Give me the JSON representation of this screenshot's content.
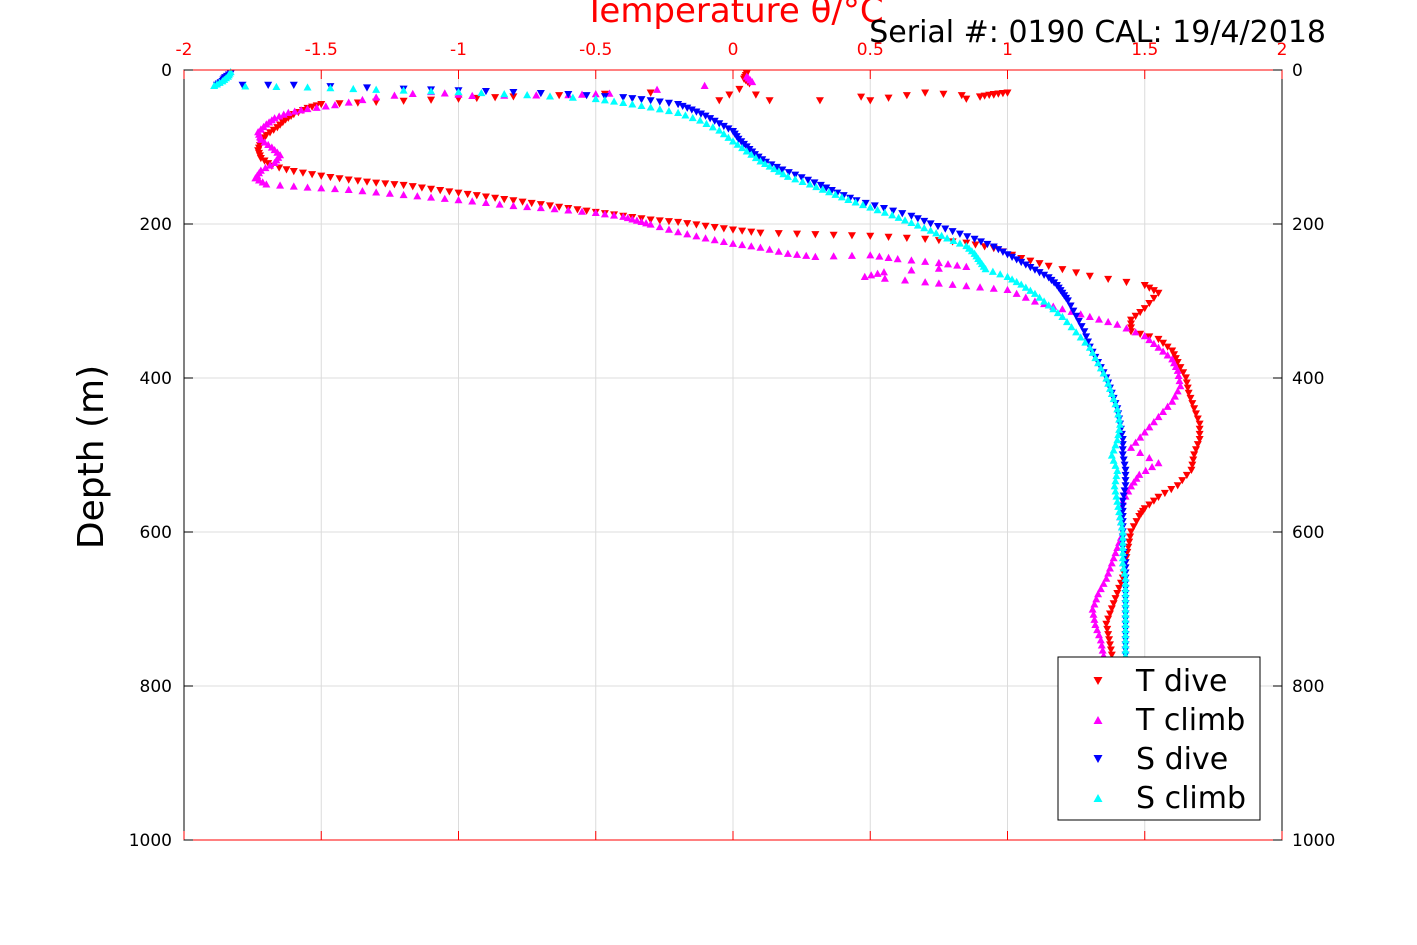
{
  "chart_data": {
    "type": "scatter",
    "title": "Temperature θ/°C",
    "subtitle": "Serial #: 0190  CAL: 19/4/2018",
    "xlabel": "Temperature θ/°C",
    "ylabel": "Depth (m)",
    "xlim": [
      -2,
      2
    ],
    "ylim": [
      0,
      1000
    ],
    "y_reversed": true,
    "x_axis_position": "top",
    "x_ticks": [
      -2,
      -1.5,
      -1,
      -0.5,
      0,
      0.5,
      1,
      1.5,
      2
    ],
    "x_tick_labels": [
      "-2",
      "-1.5",
      "-1",
      "-0.5",
      "0",
      "0.5",
      "1",
      "1.5",
      "2"
    ],
    "y_ticks": [
      0,
      200,
      400,
      600,
      800,
      1000
    ],
    "y_tick_labels": [
      "0",
      "200",
      "400",
      "600",
      "800",
      "1000"
    ],
    "grid": true,
    "legend_position": "bottom-right",
    "series": [
      {
        "name": "T dive",
        "color": "#ff0000",
        "marker": "triangle-down",
        "points": [
          [
            0.05,
            5
          ],
          [
            0.04,
            12
          ],
          [
            0.06,
            18
          ],
          [
            -0.05,
            40
          ],
          [
            0.5,
            40
          ],
          [
            0.7,
            30
          ],
          [
            0.9,
            35
          ],
          [
            0.95,
            32
          ],
          [
            1.0,
            30
          ],
          [
            0.85,
            38
          ],
          [
            -0.3,
            30
          ],
          [
            -0.8,
            35
          ],
          [
            -1.0,
            38
          ],
          [
            -1.3,
            42
          ],
          [
            -1.5,
            45
          ],
          [
            -1.55,
            50
          ],
          [
            -1.6,
            58
          ],
          [
            -1.63,
            65
          ],
          [
            -1.66,
            75
          ],
          [
            -1.7,
            85
          ],
          [
            -1.72,
            95
          ],
          [
            -1.73,
            105
          ],
          [
            -1.72,
            115
          ],
          [
            -1.68,
            125
          ],
          [
            -1.6,
            132
          ],
          [
            -1.5,
            138
          ],
          [
            -1.4,
            143
          ],
          [
            -1.3,
            147
          ],
          [
            -1.2,
            150
          ],
          [
            -1.1,
            155
          ],
          [
            -1.0,
            160
          ],
          [
            -0.9,
            165
          ],
          [
            -0.8,
            170
          ],
          [
            -0.7,
            175
          ],
          [
            -0.6,
            180
          ],
          [
            -0.5,
            185
          ],
          [
            -0.4,
            190
          ],
          [
            -0.3,
            195
          ],
          [
            -0.2,
            198
          ],
          [
            -0.1,
            203
          ],
          [
            0.0,
            208
          ],
          [
            0.1,
            212
          ],
          [
            0.3,
            214
          ],
          [
            0.5,
            216
          ],
          [
            0.7,
            220
          ],
          [
            0.85,
            225
          ],
          [
            0.95,
            232
          ],
          [
            1.05,
            245
          ],
          [
            1.15,
            255
          ],
          [
            1.3,
            268
          ],
          [
            1.5,
            280
          ],
          [
            1.55,
            290
          ],
          [
            1.5,
            310
          ],
          [
            1.45,
            325
          ],
          [
            1.45,
            340
          ],
          [
            1.55,
            350
          ],
          [
            1.6,
            365
          ],
          [
            1.62,
            380
          ],
          [
            1.65,
            400
          ],
          [
            1.66,
            420
          ],
          [
            1.68,
            440
          ],
          [
            1.7,
            460
          ],
          [
            1.7,
            480
          ],
          [
            1.68,
            500
          ],
          [
            1.67,
            520
          ],
          [
            1.62,
            540
          ],
          [
            1.55,
            555
          ],
          [
            1.5,
            570
          ],
          [
            1.48,
            580
          ],
          [
            1.45,
            600
          ],
          [
            1.44,
            620
          ],
          [
            1.43,
            640
          ],
          [
            1.42,
            660
          ],
          [
            1.4,
            680
          ],
          [
            1.38,
            700
          ],
          [
            1.36,
            720
          ],
          [
            1.37,
            740
          ],
          [
            1.38,
            760
          ]
        ]
      },
      {
        "name": "T climb",
        "color": "#ff00ff",
        "marker": "triangle-up",
        "points": [
          [
            0.05,
            8
          ],
          [
            0.07,
            15
          ],
          [
            -0.45,
            30
          ],
          [
            -0.6,
            32
          ],
          [
            -0.95,
            33
          ],
          [
            -1.1,
            28
          ],
          [
            -1.3,
            35
          ],
          [
            -1.45,
            45
          ],
          [
            -1.55,
            50
          ],
          [
            -1.62,
            55
          ],
          [
            -1.67,
            62
          ],
          [
            -1.7,
            70
          ],
          [
            -1.73,
            80
          ],
          [
            -1.72,
            90
          ],
          [
            -1.68,
            100
          ],
          [
            -1.65,
            110
          ],
          [
            -1.67,
            120
          ],
          [
            -1.72,
            130
          ],
          [
            -1.74,
            140
          ],
          [
            -1.7,
            148
          ],
          [
            -1.55,
            152
          ],
          [
            -1.4,
            155
          ],
          [
            -1.25,
            160
          ],
          [
            -1.1,
            165
          ],
          [
            -0.95,
            170
          ],
          [
            -0.8,
            176
          ],
          [
            -0.65,
            180
          ],
          [
            -0.5,
            185
          ],
          [
            -0.4,
            190
          ],
          [
            -0.35,
            195
          ],
          [
            -0.3,
            200
          ],
          [
            -0.2,
            210
          ],
          [
            -0.1,
            218
          ],
          [
            0.0,
            225
          ],
          [
            0.1,
            230
          ],
          [
            0.2,
            238
          ],
          [
            0.3,
            242
          ],
          [
            0.5,
            240
          ],
          [
            0.6,
            245
          ],
          [
            0.75,
            250
          ],
          [
            0.85,
            255
          ],
          [
            0.55,
            262
          ],
          [
            0.48,
            268
          ],
          [
            0.7,
            275
          ],
          [
            0.85,
            280
          ],
          [
            1.0,
            285
          ],
          [
            1.1,
            300
          ],
          [
            1.2,
            310
          ],
          [
            1.3,
            320
          ],
          [
            1.4,
            330
          ],
          [
            1.5,
            345
          ],
          [
            1.55,
            360
          ],
          [
            1.6,
            375
          ],
          [
            1.62,
            390
          ],
          [
            1.63,
            410
          ],
          [
            1.6,
            430
          ],
          [
            1.55,
            450
          ],
          [
            1.5,
            470
          ],
          [
            1.45,
            490
          ],
          [
            1.55,
            510
          ],
          [
            1.48,
            525
          ],
          [
            1.45,
            540
          ],
          [
            1.42,
            560
          ],
          [
            1.41,
            580
          ],
          [
            1.42,
            600
          ],
          [
            1.4,
            620
          ],
          [
            1.38,
            640
          ],
          [
            1.36,
            660
          ],
          [
            1.33,
            680
          ],
          [
            1.31,
            700
          ],
          [
            1.32,
            720
          ],
          [
            1.34,
            740
          ],
          [
            1.35,
            760
          ]
        ]
      },
      {
        "name": "S dive",
        "color": "#0000ff",
        "marker": "triangle-down",
        "points": [
          [
            -1.83,
            5
          ],
          [
            -1.85,
            10
          ],
          [
            -1.86,
            15
          ],
          [
            -1.88,
            20
          ],
          [
            -1.6,
            20
          ],
          [
            -1.2,
            25
          ],
          [
            -0.9,
            28
          ],
          [
            -0.6,
            32
          ],
          [
            -0.4,
            36
          ],
          [
            -0.3,
            40
          ],
          [
            -0.2,
            45
          ],
          [
            -0.15,
            52
          ],
          [
            -0.1,
            60
          ],
          [
            -0.05,
            70
          ],
          [
            0.0,
            80
          ],
          [
            0.02,
            90
          ],
          [
            0.05,
            100
          ],
          [
            0.08,
            110
          ],
          [
            0.12,
            120
          ],
          [
            0.18,
            130
          ],
          [
            0.25,
            140
          ],
          [
            0.32,
            150
          ],
          [
            0.38,
            160
          ],
          [
            0.45,
            170
          ],
          [
            0.55,
            180
          ],
          [
            0.65,
            190
          ],
          [
            0.72,
            200
          ],
          [
            0.8,
            210
          ],
          [
            0.88,
            220
          ],
          [
            0.95,
            230
          ],
          [
            1.0,
            240
          ],
          [
            1.05,
            250
          ],
          [
            1.1,
            260
          ],
          [
            1.15,
            270
          ],
          [
            1.18,
            280
          ],
          [
            1.2,
            290
          ],
          [
            1.22,
            300
          ],
          [
            1.25,
            320
          ],
          [
            1.28,
            340
          ],
          [
            1.3,
            360
          ],
          [
            1.33,
            380
          ],
          [
            1.36,
            400
          ],
          [
            1.38,
            420
          ],
          [
            1.4,
            440
          ],
          [
            1.41,
            460
          ],
          [
            1.42,
            480
          ],
          [
            1.42,
            500
          ],
          [
            1.43,
            520
          ],
          [
            1.43,
            540
          ],
          [
            1.42,
            560
          ],
          [
            1.42,
            580
          ],
          [
            1.42,
            600
          ],
          [
            1.42,
            620
          ],
          [
            1.43,
            640
          ],
          [
            1.43,
            660
          ],
          [
            1.43,
            680
          ],
          [
            1.43,
            700
          ],
          [
            1.43,
            720
          ],
          [
            1.43,
            740
          ],
          [
            1.43,
            760
          ]
        ]
      },
      {
        "name": "S climb",
        "color": "#00ffff",
        "marker": "triangle-up",
        "points": [
          [
            -1.83,
            2
          ],
          [
            -1.84,
            8
          ],
          [
            -1.86,
            14
          ],
          [
            -1.89,
            20
          ],
          [
            -1.55,
            22
          ],
          [
            -1.3,
            25
          ],
          [
            -1.0,
            28
          ],
          [
            -0.75,
            32
          ],
          [
            -0.5,
            37
          ],
          [
            -0.4,
            42
          ],
          [
            -0.3,
            48
          ],
          [
            -0.2,
            55
          ],
          [
            -0.12,
            65
          ],
          [
            -0.05,
            78
          ],
          [
            0.0,
            92
          ],
          [
            0.05,
            105
          ],
          [
            0.1,
            118
          ],
          [
            0.15,
            128
          ],
          [
            0.2,
            138
          ],
          [
            0.28,
            148
          ],
          [
            0.35,
            158
          ],
          [
            0.42,
            168
          ],
          [
            0.5,
            178
          ],
          [
            0.58,
            188
          ],
          [
            0.65,
            198
          ],
          [
            0.72,
            208
          ],
          [
            0.78,
            218
          ],
          [
            0.85,
            228
          ],
          [
            0.88,
            238
          ],
          [
            0.9,
            248
          ],
          [
            0.92,
            258
          ],
          [
            1.0,
            268
          ],
          [
            1.05,
            278
          ],
          [
            1.1,
            290
          ],
          [
            1.15,
            305
          ],
          [
            1.2,
            320
          ],
          [
            1.25,
            340
          ],
          [
            1.3,
            360
          ],
          [
            1.33,
            380
          ],
          [
            1.36,
            400
          ],
          [
            1.38,
            420
          ],
          [
            1.4,
            440
          ],
          [
            1.41,
            460
          ],
          [
            1.4,
            480
          ],
          [
            1.38,
            500
          ],
          [
            1.4,
            520
          ],
          [
            1.39,
            540
          ],
          [
            1.4,
            560
          ],
          [
            1.41,
            580
          ],
          [
            1.42,
            600
          ],
          [
            1.42,
            620
          ],
          [
            1.42,
            640
          ],
          [
            1.43,
            660
          ],
          [
            1.43,
            680
          ],
          [
            1.43,
            700
          ],
          [
            1.43,
            720
          ],
          [
            1.43,
            740
          ],
          [
            1.43,
            760
          ]
        ]
      }
    ]
  }
}
